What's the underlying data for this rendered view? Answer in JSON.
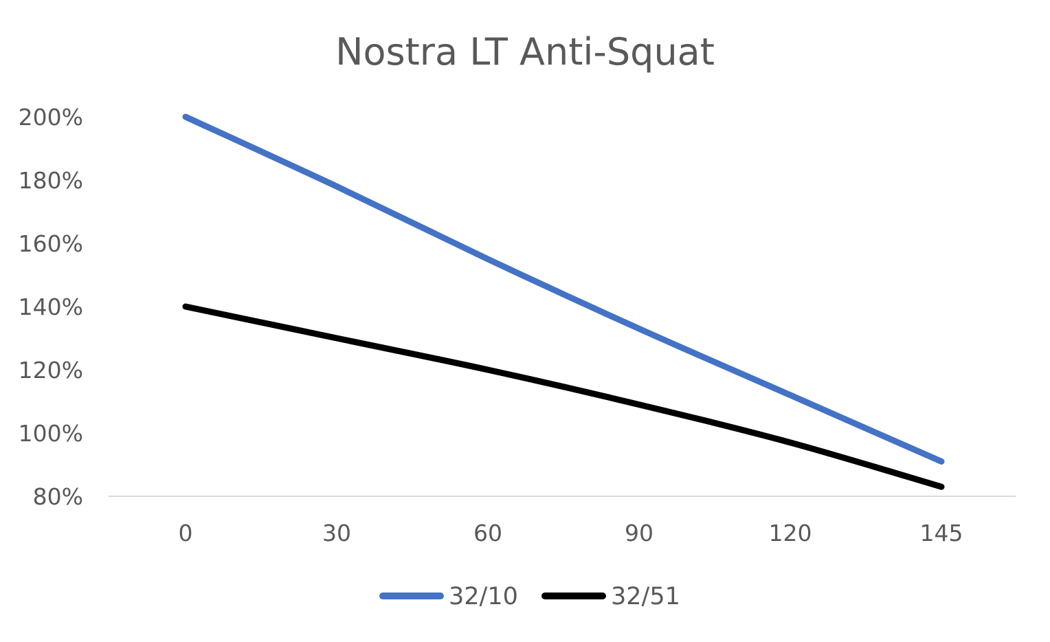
{
  "chart_data": {
    "type": "line",
    "title": "Nostra LT Anti-Squat",
    "xlabel": "",
    "ylabel": "",
    "x": [
      0,
      30,
      60,
      90,
      120,
      145
    ],
    "x_tick_labels": [
      "0",
      "30",
      "60",
      "90",
      "120",
      "145"
    ],
    "y_tick_labels": [
      "200%",
      "180%",
      "160%",
      "140%",
      "120%",
      "100%",
      "80%"
    ],
    "ylim": [
      80,
      200
    ],
    "y_unit": "%",
    "grid": false,
    "legend_position": "bottom",
    "series": [
      {
        "name": "32/10",
        "color": "#4472c4",
        "x": [
          0,
          30,
          60,
          90,
          120,
          145
        ],
        "values": [
          200,
          178,
          155,
          133,
          112,
          91
        ]
      },
      {
        "name": "32/51",
        "color": "#000000",
        "x": [
          0,
          30,
          60,
          90,
          120,
          145
        ],
        "values": [
          140,
          130,
          120,
          109,
          97,
          83
        ]
      }
    ]
  }
}
